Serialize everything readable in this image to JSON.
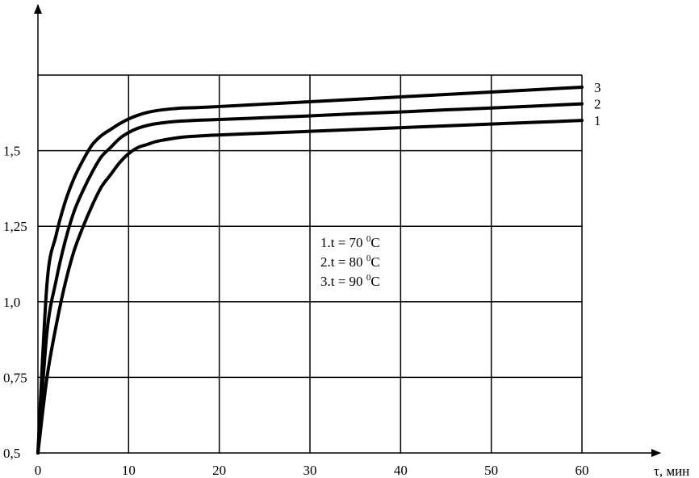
{
  "chart_data": {
    "type": "line",
    "title": "",
    "xlabel": "τ, мин",
    "ylabel": "",
    "xlim": [
      0,
      60
    ],
    "ylim": [
      0.5,
      1.75
    ],
    "grid": true,
    "x_ticks": [
      0,
      10,
      20,
      30,
      40,
      50,
      60
    ],
    "x_tick_labels": [
      "0",
      "10",
      "20",
      "30",
      "40",
      "50",
      "60"
    ],
    "y_ticks": [
      0.5,
      0.75,
      1.0,
      1.25,
      1.5
    ],
    "y_tick_labels": [
      "0,5",
      "0,75",
      "1,0",
      "1,25",
      "1,5"
    ],
    "x": [
      0,
      1,
      2,
      3,
      4,
      5,
      6,
      7,
      8,
      9,
      10,
      11,
      12,
      13,
      14,
      15,
      16,
      18,
      20,
      25,
      30,
      35,
      40,
      45,
      50,
      55,
      60
    ],
    "series": [
      {
        "name": "1",
        "values": [
          0.5,
          0.75,
          0.92,
          1.06,
          1.17,
          1.25,
          1.32,
          1.38,
          1.42,
          1.46,
          1.49,
          1.51,
          1.52,
          1.53,
          1.536,
          1.541,
          1.545,
          1.549,
          1.552,
          1.558,
          1.564,
          1.57,
          1.576,
          1.582,
          1.588,
          1.594,
          1.6
        ]
      },
      {
        "name": "2",
        "values": [
          0.5,
          0.9,
          1.07,
          1.2,
          1.3,
          1.37,
          1.43,
          1.48,
          1.51,
          1.54,
          1.56,
          1.574,
          1.583,
          1.589,
          1.593,
          1.596,
          1.598,
          1.601,
          1.603,
          1.609,
          1.615,
          1.622,
          1.628,
          1.635,
          1.641,
          1.648,
          1.655
        ]
      },
      {
        "name": "3",
        "values": [
          0.5,
          1.06,
          1.22,
          1.33,
          1.41,
          1.47,
          1.52,
          1.55,
          1.57,
          1.589,
          1.605,
          1.617,
          1.626,
          1.632,
          1.636,
          1.639,
          1.641,
          1.643,
          1.646,
          1.654,
          1.662,
          1.67,
          1.678,
          1.686,
          1.694,
          1.702,
          1.71
        ]
      }
    ],
    "legend": {
      "placement": "center",
      "entries": [
        {
          "prefix": "1.t = 70 ",
          "sup": "0",
          "unit": "C"
        },
        {
          "prefix": "2.t = 80 ",
          "sup": "0",
          "unit": "C"
        },
        {
          "prefix": "3.t = 90 ",
          "sup": "0",
          "unit": "C"
        }
      ]
    }
  }
}
